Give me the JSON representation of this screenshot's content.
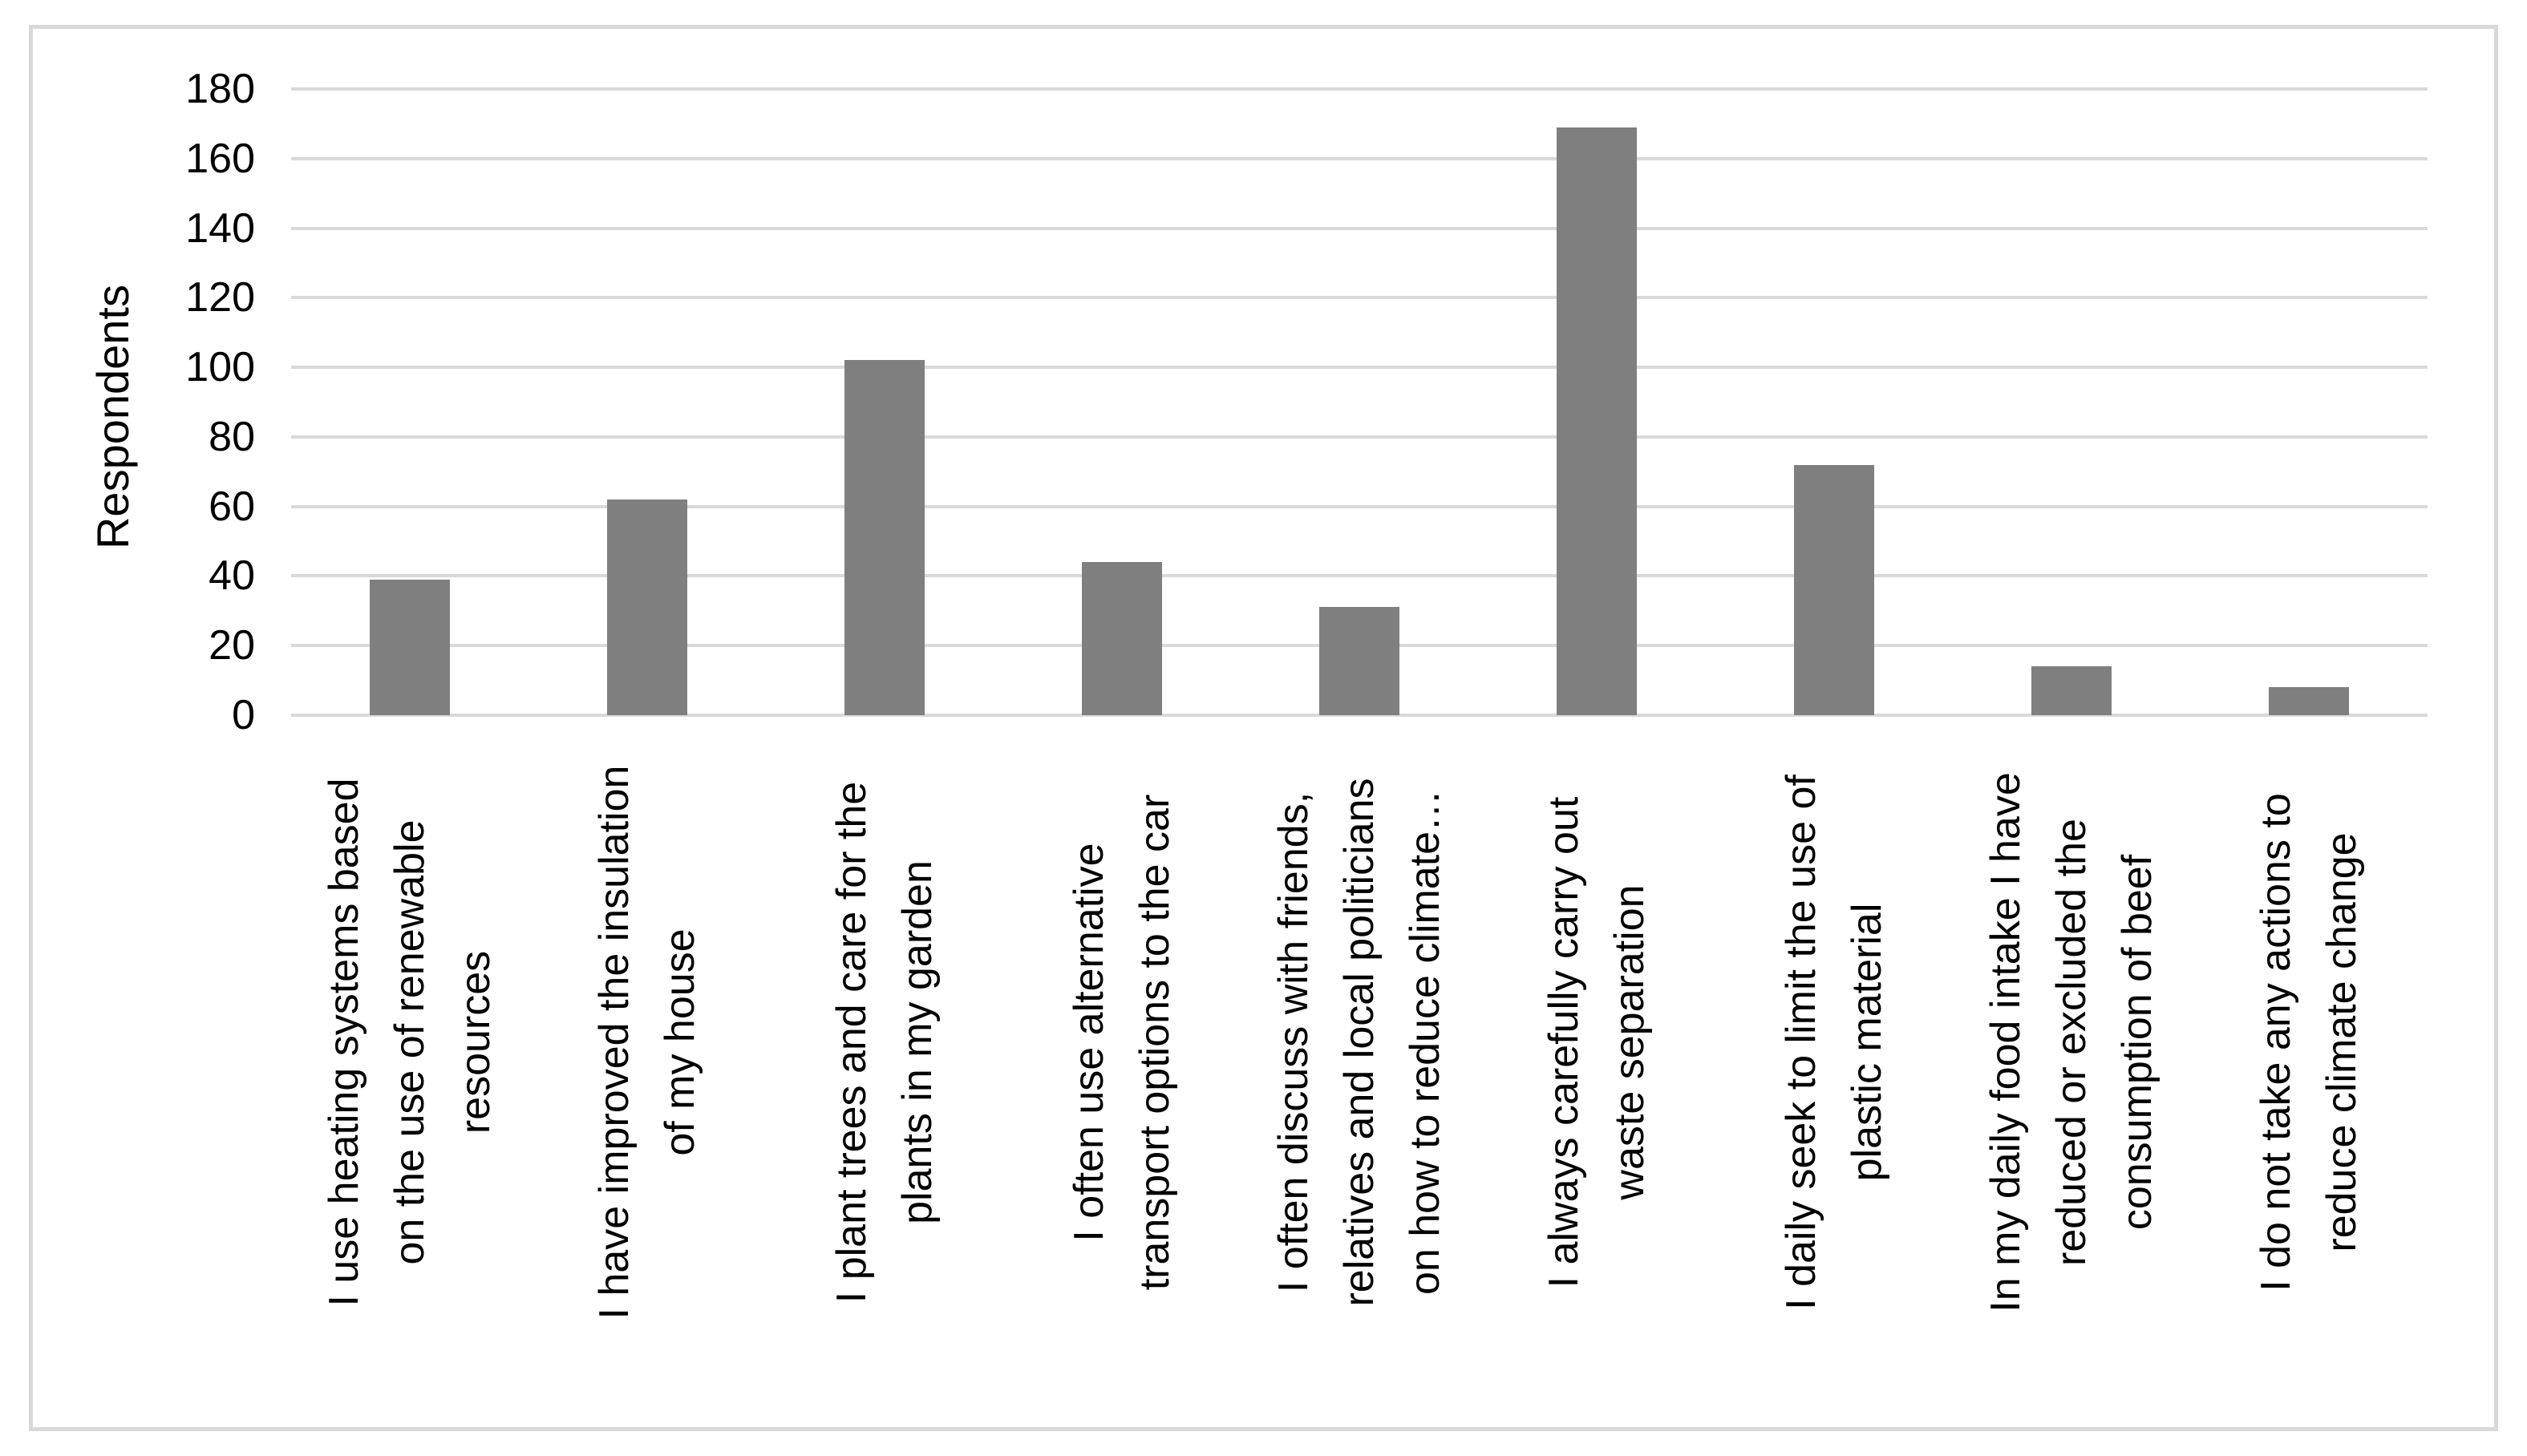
{
  "figure": {
    "background": "#ffffff",
    "border_color": "#d9d9d9"
  },
  "chart_data": {
    "type": "bar",
    "title": "",
    "xlabel": "",
    "ylabel": "Respondents",
    "ylim": [
      0,
      180
    ],
    "ytick_step": 20,
    "grid": "horizontal",
    "legend": "none",
    "bar_color": "#7f7f7f",
    "gridline_color": "#d9d9d9",
    "axis_text_color": "#000000",
    "categories": [
      "I use heating systems based\non the use of renewable\nresources",
      "I have improved the insulation\nof my house",
      "I plant trees and care for the\nplants in my garden",
      "I often use alternative\ntransport options to the car",
      "I often discuss with friends,\nrelatives and local politicians\non how to reduce climate…",
      "I always carefully carry out\nwaste separation",
      "I daily seek to limit the use of\nplastic material",
      "In my daily food intake I have\nreduced or excluded the\nconsumption of beef",
      "I do not take any actions to\nreduce climate change"
    ],
    "values": [
      39,
      62,
      102,
      44,
      31,
      169,
      72,
      14,
      8
    ]
  }
}
